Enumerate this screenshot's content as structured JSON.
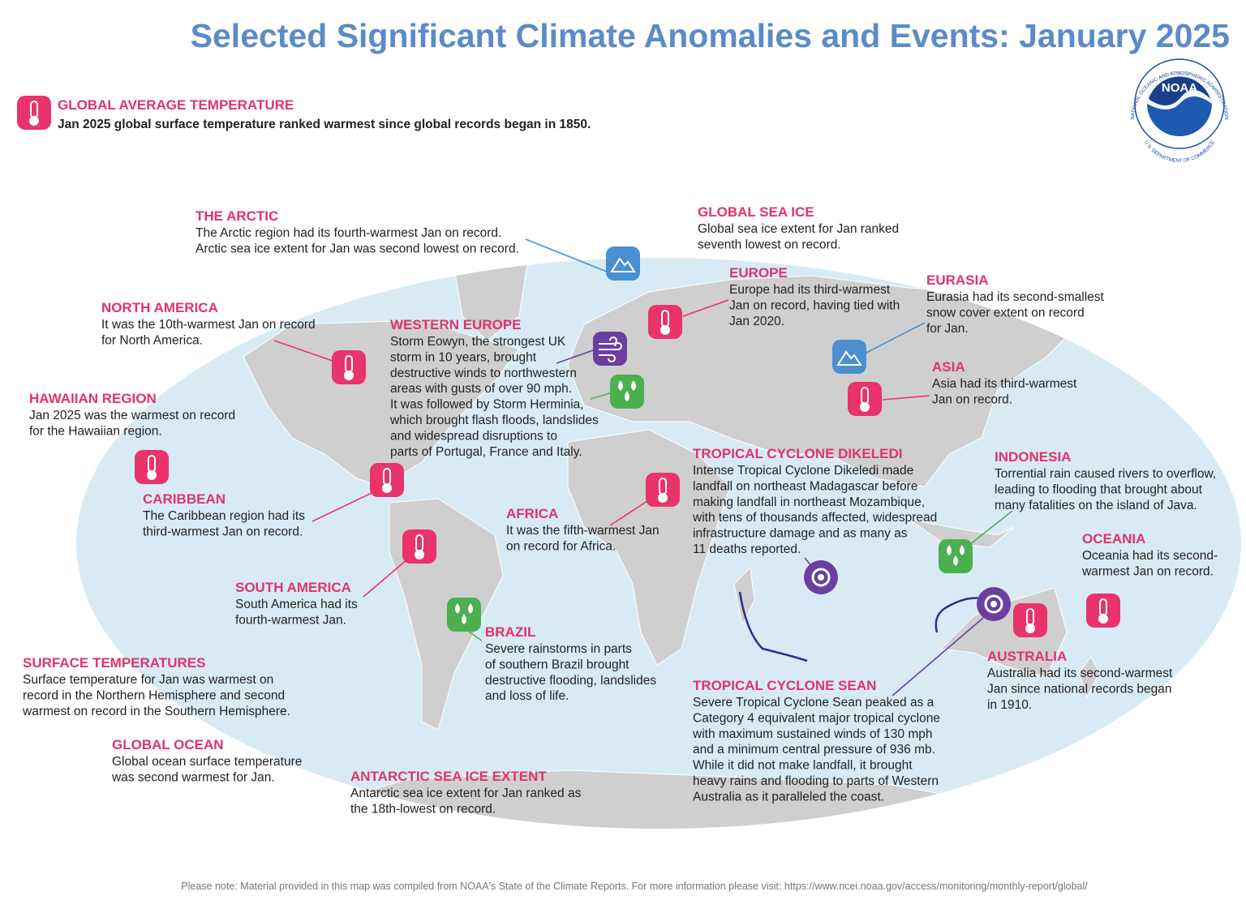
{
  "title": "Selected Significant Climate Anomalies and Events: January 2025",
  "global": {
    "heading": "GLOBAL AVERAGE TEMPERATURE",
    "text": "Jan 2025 global surface temperature ranked warmest since global records began in 1850."
  },
  "logo": {
    "text": "NOAA",
    "ring": "NATIONAL OCEANIC AND ATMOSPHERIC ADMINISTRATION",
    "ring2": "U.S. DEPARTMENT OF COMMERCE"
  },
  "events": [
    {
      "heading": "THE ARCTIC",
      "lines": [
        "The Arctic region had its fourth-warmest Jan on record.",
        "Arctic sea ice extent for Jan was second lowest on record."
      ]
    },
    {
      "heading": "GLOBAL SEA ICE",
      "lines": [
        "Global sea ice extent for Jan ranked",
        "seventh lowest on record."
      ]
    },
    {
      "heading": "EUROPE",
      "lines": [
        "Europe had its third-warmest",
        "Jan on record, having tied with",
        "Jan 2020."
      ]
    },
    {
      "heading": "EURASIA",
      "lines": [
        "Eurasia had its second-smallest",
        "snow cover extent on record",
        "for Jan."
      ]
    },
    {
      "heading": "NORTH AMERICA",
      "lines": [
        "It was the 10th-warmest Jan on record",
        "for North America."
      ]
    },
    {
      "heading": "WESTERN EUROPE",
      "lines": [
        "Storm Eowyn, the strongest UK",
        "storm in 10 years, brought",
        "destructive winds to northwestern",
        "areas with gusts of over 90 mph.",
        "It was followed by Storm Herminia,",
        "which brought flash floods, landslides",
        "and widespread disruptions to",
        "parts of Portugal, France and Italy."
      ]
    },
    {
      "heading": "ASIA",
      "lines": [
        "Asia had its third-warmest",
        "Jan on record."
      ]
    },
    {
      "heading": "HAWAIIAN REGION",
      "lines": [
        "Jan 2025 was the warmest on record",
        "for the Hawaiian region."
      ]
    },
    {
      "heading": "TROPICAL CYCLONE DIKELEDI",
      "lines": [
        "Intense Tropical Cyclone Dikeledi made",
        "landfall on northeast Madagascar before",
        "making landfall in northeast Mozambique,",
        "with tens of thousands affected, widespread",
        "infrastructure damage and as many as",
        "11 deaths reported."
      ]
    },
    {
      "heading": "INDONESIA",
      "lines": [
        "Torrential rain caused rivers to overflow,",
        "leading to flooding that brought about",
        "many fatalities on the island of Java."
      ]
    },
    {
      "heading": "CARIBBEAN",
      "lines": [
        "The Caribbean region had its",
        "third-warmest Jan on record."
      ]
    },
    {
      "heading": "AFRICA",
      "lines": [
        "It was the fifth-warmest Jan",
        "on record for Africa."
      ]
    },
    {
      "heading": "OCEANIA",
      "lines": [
        "Oceania had its second-",
        "warmest Jan on record."
      ]
    },
    {
      "heading": "SOUTH AMERICA",
      "lines": [
        "South America had its",
        "fourth-warmest Jan."
      ]
    },
    {
      "heading": "BRAZIL",
      "lines": [
        "Severe rainstorms in parts",
        "of southern Brazil brought",
        "destructive flooding, landslides",
        "and loss of life."
      ]
    },
    {
      "heading": "AUSTRALIA",
      "lines": [
        "Australia had its second-warmest",
        "Jan since national records began",
        "in 1910."
      ]
    },
    {
      "heading": "SURFACE TEMPERATURES",
      "lines": [
        "Surface temperature for Jan was warmest on",
        "record in the Northern Hemisphere and second",
        "warmest on record in the Southern Hemisphere."
      ]
    },
    {
      "heading": "TROPICAL CYCLONE SEAN",
      "lines": [
        "Severe Tropical Cyclone Sean peaked as a",
        "Category 4 equivalent major tropical cyclone",
        "with maximum sustained winds of 130 mph",
        "and a minimum central pressure of 936 mb.",
        "While it did not make landfall, it brought",
        "heavy rains and flooding to parts of Western",
        "Australia as it paralleled the coast."
      ]
    },
    {
      "heading": "GLOBAL OCEAN",
      "lines": [
        "Global ocean surface temperature",
        "was second warmest for Jan."
      ]
    },
    {
      "heading": "ANTARCTIC SEA ICE EXTENT",
      "lines": [
        "Antarctic sea ice extent for Jan ranked as",
        "the 18th-lowest on record."
      ]
    }
  ],
  "note": "Please note: Material provided in this map was compiled from NOAA's State of the Climate Reports. For more information please visit: https://www.ncei.noaa.gov/access/monitoring/monthly-report/global/"
}
